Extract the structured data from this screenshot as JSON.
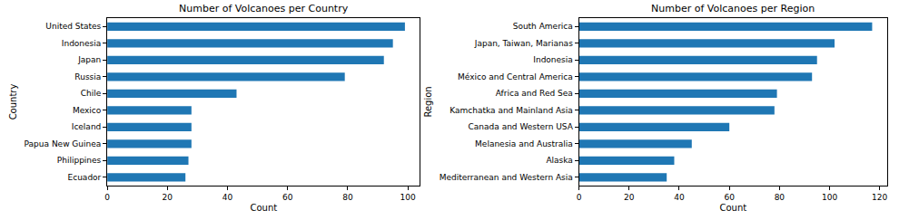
{
  "chart_data": [
    {
      "type": "bar",
      "orientation": "horizontal",
      "title": "Number of Volcanoes per Country",
      "x_label": "Count",
      "y_label": "Country",
      "categories": [
        "United States",
        "Indonesia",
        "Japan",
        "Russia",
        "Chile",
        "Mexico",
        "Iceland",
        "Papua New Guinea",
        "Philippines",
        "Ecuador"
      ],
      "values": [
        99,
        95,
        92,
        79,
        43,
        28,
        28,
        28,
        27,
        26
      ],
      "color": "#1f77b4",
      "xlim": [
        0,
        104
      ],
      "xticks": [
        0,
        20,
        40,
        60,
        80,
        100
      ],
      "grid": false
    },
    {
      "type": "bar",
      "orientation": "horizontal",
      "title": "Number of Volcanoes per Region",
      "x_label": "Count",
      "y_label": "Region",
      "categories": [
        "South America",
        "Japan, Taiwan, Marianas",
        "Indonesia",
        "México and Central America",
        "Africa and Red Sea",
        "Kamchatka and Mainland Asia",
        "Canada and Western USA",
        "Melanesia and Australia",
        "Alaska",
        "Mediterranean and Western Asia"
      ],
      "values": [
        117,
        102,
        95,
        93,
        79,
        78,
        60,
        45,
        38,
        35
      ],
      "color": "#1f77b4",
      "xlim": [
        0,
        123
      ],
      "xticks": [
        0,
        20,
        40,
        60,
        80,
        100,
        120
      ],
      "grid": false
    }
  ]
}
